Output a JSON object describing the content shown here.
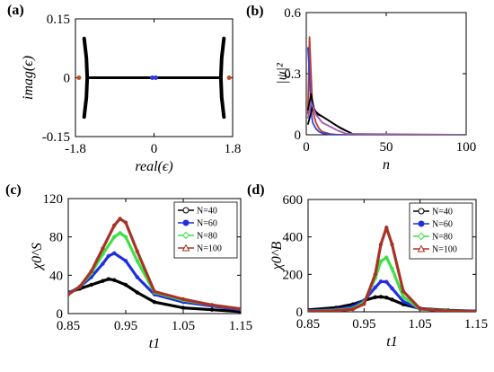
{
  "chart_data": [
    {
      "panel": "(a)",
      "type": "scatter",
      "xlabel": "real(ϵ)",
      "ylabel": "imag(ϵ)",
      "xlim": [
        -1.8,
        1.8
      ],
      "ylim": [
        -0.15,
        0.15
      ],
      "xticks": [
        -1.8,
        0,
        1.8
      ],
      "xtick_labels": [
        "-1.8",
        "0",
        "1.8"
      ],
      "yticks": [
        -0.15,
        0,
        0.15
      ],
      "ytick_labels": [
        "-0.15",
        "0",
        "0.15"
      ],
      "segments": [
        {
          "x": [
            -1.55,
            1.55
          ],
          "y": [
            0,
            0
          ],
          "color": "#000000"
        }
      ],
      "curves": [
        {
          "x": [
            -1.6,
            -1.55,
            -1.53,
            -1.55,
            -1.6
          ],
          "y": [
            0.1,
            0.05,
            0,
            -0.05,
            -0.1
          ],
          "color": "#000000"
        },
        {
          "x": [
            1.6,
            1.55,
            1.53,
            1.55,
            1.6
          ],
          "y": [
            0.1,
            0.05,
            0,
            -0.05,
            -0.1
          ],
          "color": "#000000"
        }
      ],
      "points": [
        {
          "x": -1.72,
          "y": 0,
          "color": "#c0502a"
        },
        {
          "x": 1.72,
          "y": 0,
          "color": "#c0502a"
        },
        {
          "x": -0.04,
          "y": 0,
          "color": "#2a3bd9"
        },
        {
          "x": 0.04,
          "y": 0,
          "color": "#2a3bd9"
        }
      ]
    },
    {
      "panel": "(b)",
      "type": "line",
      "xlabel": "n",
      "ylabel": "|ψ|²",
      "xlim": [
        0,
        100
      ],
      "ylim": [
        0,
        0.6
      ],
      "xticks": [
        0,
        50,
        100
      ],
      "xtick_labels": [
        "0",
        "50",
        "100"
      ],
      "yticks": [
        0,
        0.3,
        0.6
      ],
      "ytick_labels": [
        "0",
        "0.3",
        "0.6"
      ],
      "series": [
        {
          "color": "#c0392b",
          "x": [
            1,
            2,
            3,
            4,
            6,
            8,
            10,
            15,
            20,
            100
          ],
          "y": [
            0.1,
            0.48,
            0.3,
            0.12,
            0.06,
            0.03,
            0.015,
            0.004,
            0.0,
            0.0
          ]
        },
        {
          "color": "#3344dd",
          "x": [
            1,
            2,
            3,
            4,
            6,
            8,
            10,
            15,
            20,
            100
          ],
          "y": [
            0.43,
            0.3,
            0.12,
            0.06,
            0.03,
            0.015,
            0.008,
            0.002,
            0.0,
            0.0
          ]
        },
        {
          "color": "#000000",
          "x": [
            1,
            3,
            5,
            8,
            12,
            16,
            20,
            25,
            30,
            100
          ],
          "y": [
            0.12,
            0.2,
            0.12,
            0.1,
            0.08,
            0.06,
            0.04,
            0.02,
            0.0,
            0.0
          ]
        },
        {
          "color": "#000000",
          "x": [
            1,
            4,
            7,
            10,
            14,
            18,
            22,
            26,
            30,
            100
          ],
          "y": [
            0.05,
            0.14,
            0.1,
            0.09,
            0.07,
            0.05,
            0.03,
            0.015,
            0.0,
            0.0
          ]
        },
        {
          "color": "#9b59b6",
          "x": [
            1,
            3,
            6,
            10,
            15,
            20,
            25,
            100
          ],
          "y": [
            0.08,
            0.16,
            0.1,
            0.06,
            0.04,
            0.02,
            0.005,
            0.0
          ]
        }
      ]
    },
    {
      "panel": "(c)",
      "type": "line",
      "xlabel": "t1",
      "ylabel": "χ0^S",
      "xlim": [
        0.85,
        1.15
      ],
      "ylim": [
        0,
        120
      ],
      "xticks": [
        0.85,
        0.95,
        1.05,
        1.15
      ],
      "xtick_labels": [
        "0.85",
        "0.95",
        "1.05",
        "1.15"
      ],
      "yticks": [
        0,
        40,
        80,
        120
      ],
      "ytick_labels": [
        "0",
        "40",
        "80",
        "120"
      ],
      "legend_position": "top-right",
      "series": [
        {
          "name": "N=40",
          "color": "#000000",
          "x": [
            0.85,
            0.87,
            0.89,
            0.91,
            0.92,
            0.93,
            0.95,
            0.97,
            1.0,
            1.05,
            1.1,
            1.15
          ],
          "y": [
            22,
            26,
            30,
            34,
            36,
            35,
            30,
            22,
            12,
            6,
            4,
            2
          ]
        },
        {
          "name": "N=60",
          "color": "#1f2fe0",
          "x": [
            0.85,
            0.87,
            0.89,
            0.91,
            0.92,
            0.93,
            0.95,
            0.97,
            1.0,
            1.05,
            1.1,
            1.15
          ],
          "y": [
            21,
            28,
            38,
            52,
            60,
            63,
            55,
            38,
            20,
            12,
            8,
            4
          ]
        },
        {
          "name": "N=80",
          "color": "#3ee046",
          "x": [
            0.85,
            0.87,
            0.89,
            0.91,
            0.93,
            0.94,
            0.95,
            0.97,
            1.0,
            1.05,
            1.1,
            1.15
          ],
          "y": [
            20,
            28,
            42,
            62,
            80,
            84,
            80,
            55,
            22,
            14,
            9,
            5
          ]
        },
        {
          "name": "N=100",
          "color": "#a83226",
          "x": [
            0.85,
            0.87,
            0.89,
            0.91,
            0.93,
            0.94,
            0.95,
            0.97,
            1.0,
            1.05,
            1.1,
            1.15
          ],
          "y": [
            20,
            28,
            44,
            68,
            92,
            99,
            95,
            65,
            23,
            15,
            9,
            5
          ]
        }
      ]
    },
    {
      "panel": "(d)",
      "type": "line",
      "xlabel": "t1",
      "ylabel": "χ0^B",
      "xlim": [
        0.85,
        1.15
      ],
      "ylim": [
        0,
        600
      ],
      "xticks": [
        0.85,
        0.95,
        1.05,
        1.15
      ],
      "xtick_labels": [
        "0.85",
        "0.95",
        "1.05",
        "1.15"
      ],
      "yticks": [
        0,
        200,
        400,
        600
      ],
      "ytick_labels": [
        "0",
        "200",
        "400",
        "600"
      ],
      "legend_position": "top-right",
      "series": [
        {
          "name": "N=40",
          "color": "#000000",
          "x": [
            0.85,
            0.9,
            0.93,
            0.95,
            0.97,
            0.98,
            0.99,
            1.0,
            1.02,
            1.05,
            1.1,
            1.15
          ],
          "y": [
            10,
            22,
            40,
            60,
            78,
            80,
            76,
            65,
            40,
            18,
            8,
            4
          ]
        },
        {
          "name": "N=60",
          "color": "#1f2fe0",
          "x": [
            0.85,
            0.9,
            0.93,
            0.95,
            0.97,
            0.98,
            0.99,
            1.0,
            1.02,
            1.05,
            1.1,
            1.15
          ],
          "y": [
            5,
            12,
            28,
            60,
            130,
            162,
            160,
            125,
            55,
            15,
            6,
            3
          ]
        },
        {
          "name": "N=80",
          "color": "#3ee046",
          "x": [
            0.85,
            0.9,
            0.93,
            0.95,
            0.97,
            0.98,
            0.99,
            1.0,
            1.02,
            1.05,
            1.1,
            1.15
          ],
          "y": [
            3,
            8,
            18,
            50,
            180,
            270,
            290,
            230,
            80,
            15,
            5,
            2
          ]
        },
        {
          "name": "N=100",
          "color": "#a83226",
          "x": [
            0.85,
            0.9,
            0.93,
            0.95,
            0.97,
            0.98,
            0.99,
            1.0,
            1.02,
            1.05,
            1.1,
            1.15
          ],
          "y": [
            2,
            6,
            14,
            42,
            200,
            360,
            450,
            360,
            110,
            16,
            4,
            2
          ]
        }
      ]
    }
  ]
}
